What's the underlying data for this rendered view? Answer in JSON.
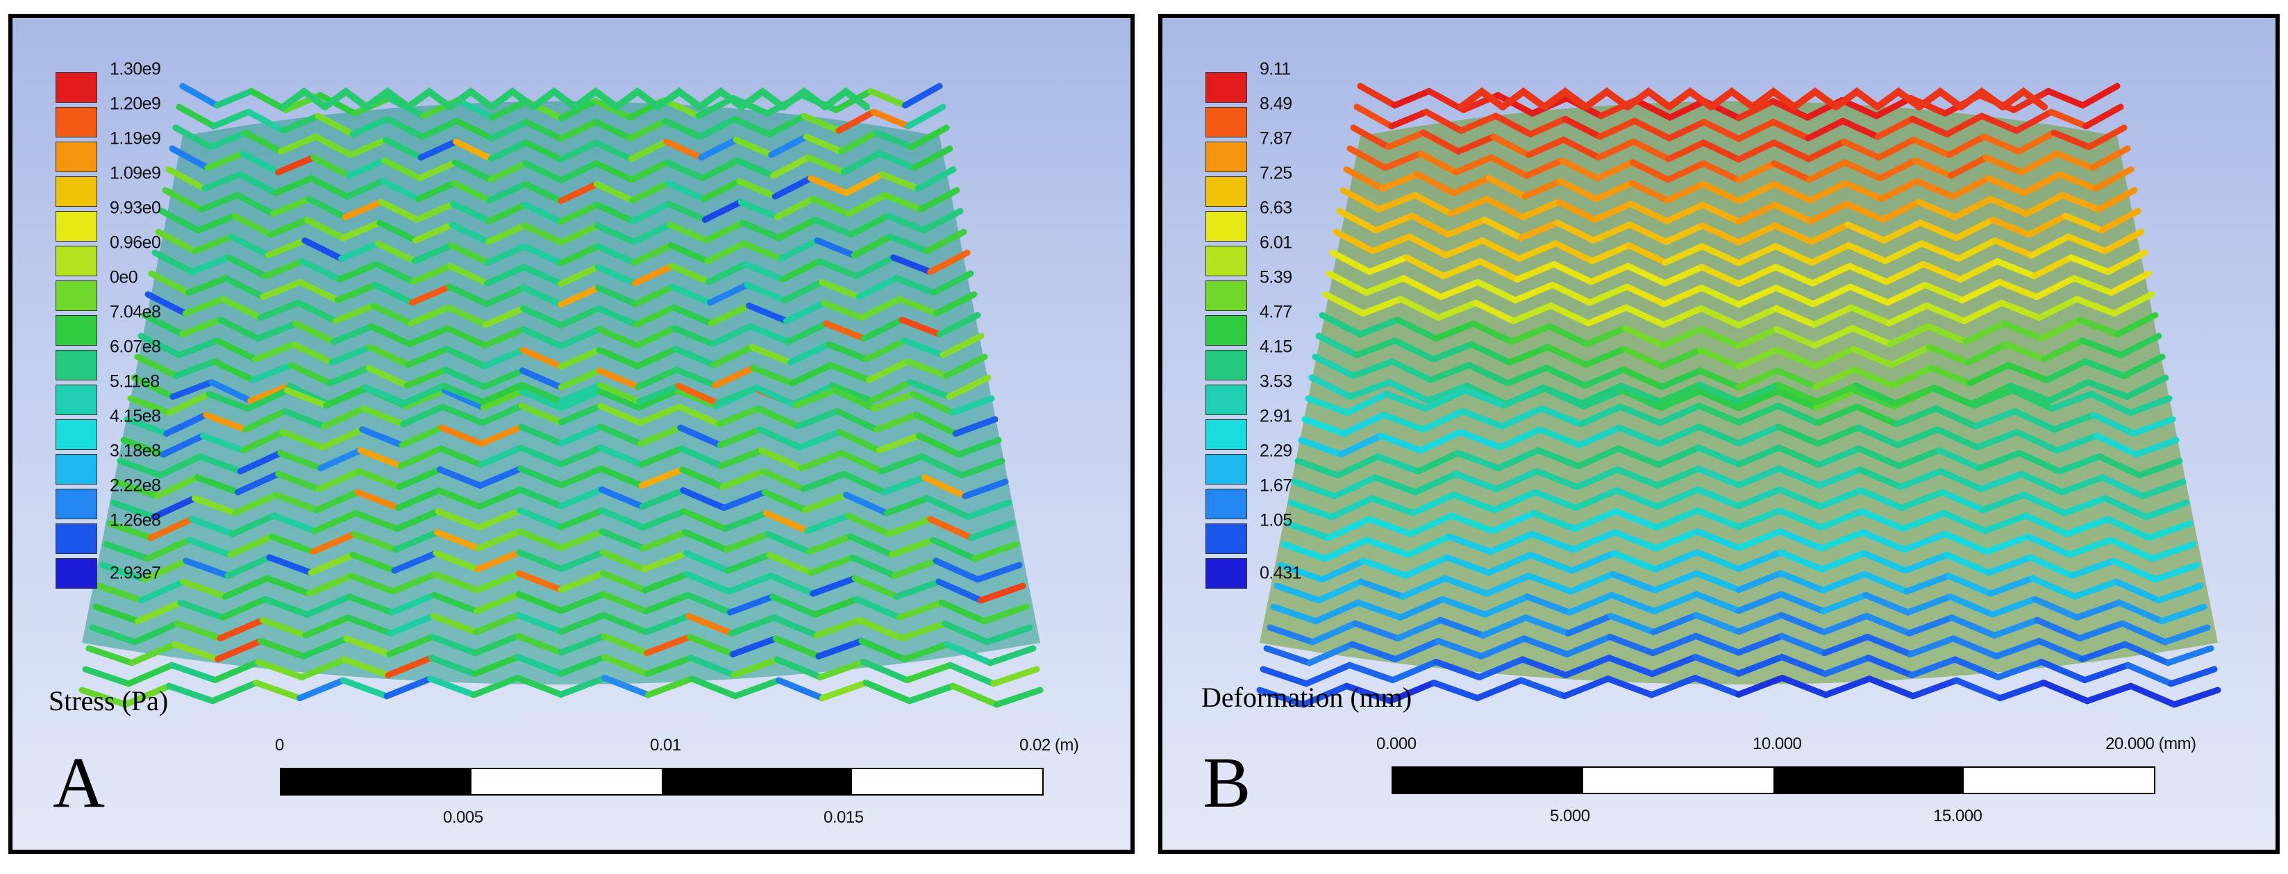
{
  "panel_a": {
    "letter": "A",
    "quantity_label": "Stress (Pa)",
    "colormap": "blue-to-red",
    "legend_ticks": [
      "1.30e9",
      "1.20e9",
      "1.19e9",
      "1.09e9",
      "9.93e0",
      "0.96e0",
      "0e0",
      "7.04e8",
      "6.07e8",
      "5.11e8",
      "4.15e8",
      "3.18e8",
      "2.22e8",
      "1.26e8",
      "2.93e7"
    ],
    "scale_top": [
      "0",
      "0.01",
      "0.02 (m)"
    ],
    "scale_bottom": [
      "0.005",
      "0.015"
    ],
    "dominant_shading": "mostly cyan-green with scattered red and blue spots"
  },
  "panel_b": {
    "letter": "B",
    "quantity_label": "Deformation (mm)",
    "colormap": "blue-to-red",
    "legend_ticks": [
      "9.11",
      "8.49",
      "7.87",
      "7.25",
      "6.63",
      "6.01",
      "5.39",
      "4.77",
      "4.15",
      "3.53",
      "2.91",
      "2.29",
      "1.67",
      "1.05",
      "0.431"
    ],
    "scale_top": [
      "0.000",
      "10.000",
      "20.000 (mm)"
    ],
    "scale_bottom": [
      "5.000",
      "15.000"
    ],
    "dominant_shading": "red at top grading to blue at bottom"
  },
  "legend_colors": [
    "#e41b1b",
    "#f45a14",
    "#f5950d",
    "#f2c20a",
    "#e5e812",
    "#b4e420",
    "#6fd82b",
    "#2fcc42",
    "#23c97f",
    "#1fd0b5",
    "#18dcde",
    "#1cb8ee",
    "#2287f0",
    "#1a56ec",
    "#1b1ed6"
  ]
}
